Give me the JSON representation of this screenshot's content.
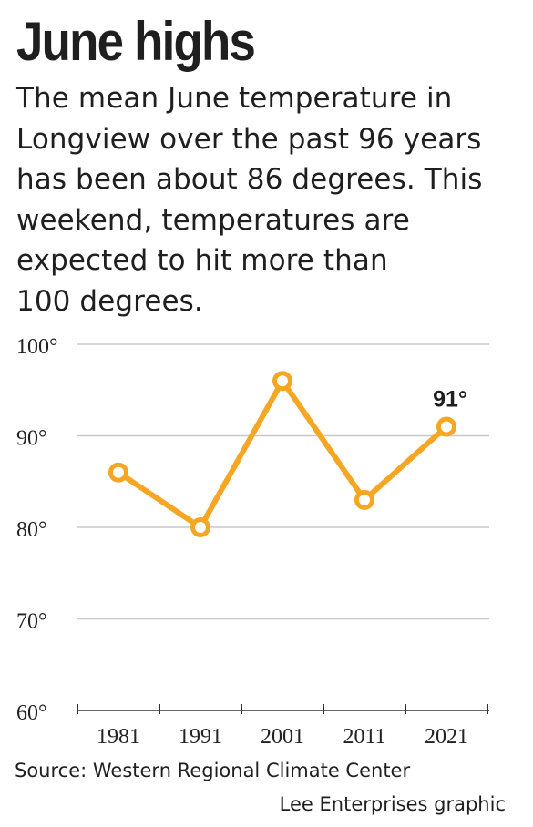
{
  "title": "June highs",
  "subtitle_lines": [
    "The mean June temperature in",
    "Longview over the past 96 years",
    "has been about 86 degrees. This",
    "weekend, temperatures are",
    "expected to hit more than",
    "100 degrees."
  ],
  "source": "Source: Western Regional Climate Center",
  "credit": "Lee Enterprises graphic",
  "chart_data": {
    "type": "line",
    "title": "June highs",
    "x": [
      "1981",
      "1991",
      "2001",
      "2011",
      "2021"
    ],
    "series": [
      {
        "values": [
          86,
          80,
          96,
          83,
          91
        ],
        "color": "#f5a623"
      }
    ],
    "ylim": [
      60,
      100
    ],
    "yticks": [
      60,
      70,
      80,
      90,
      100
    ],
    "ytick_labels": [
      "60°",
      "70°",
      "80°",
      "90°",
      "100°"
    ],
    "annotation": {
      "x": "2021",
      "label": "91°"
    },
    "grid": true,
    "gridline_color": "#c8c8c8",
    "axis_color": "#333333",
    "xlabel": "",
    "ylabel": ""
  }
}
